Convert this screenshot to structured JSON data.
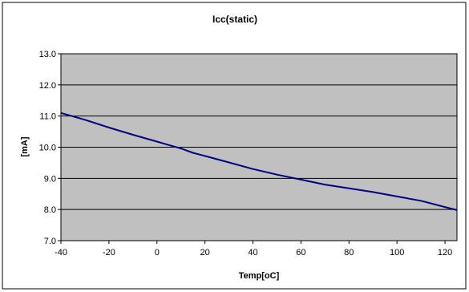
{
  "chart_data": {
    "type": "line",
    "title": "Icc(static)",
    "xlabel": "Temp[oC]",
    "ylabel": "[mA]",
    "xlim": [
      -40,
      125
    ],
    "ylim": [
      7.0,
      13.0
    ],
    "x_ticks": [
      -40,
      -20,
      0,
      20,
      40,
      60,
      80,
      100,
      120
    ],
    "x_tick_labels": [
      "-40",
      "-20",
      "0",
      "20",
      "40",
      "60",
      "80",
      "100",
      "120"
    ],
    "y_ticks": [
      7.0,
      8.0,
      9.0,
      10.0,
      11.0,
      12.0,
      13.0
    ],
    "y_tick_labels": [
      "7.0",
      "8.0",
      "9.0",
      "10.0",
      "11.0",
      "12.0",
      "13.0"
    ],
    "grid": "horizontal",
    "legend": "none",
    "series": [
      {
        "color": "#000080",
        "x": [
          -40,
          -30,
          -20,
          -10,
          0,
          5,
          10,
          15,
          20,
          30,
          40,
          50,
          60,
          70,
          80,
          90,
          100,
          110,
          115,
          120,
          125
        ],
        "y": [
          11.1,
          10.88,
          10.63,
          10.4,
          10.18,
          10.07,
          9.96,
          9.82,
          9.72,
          9.51,
          9.3,
          9.12,
          8.96,
          8.8,
          8.68,
          8.56,
          8.42,
          8.28,
          8.18,
          8.08,
          7.98
        ]
      }
    ],
    "colors": {
      "plot_background": "#c0c0c0",
      "gridline": "#000000",
      "frame": "#000000"
    }
  }
}
